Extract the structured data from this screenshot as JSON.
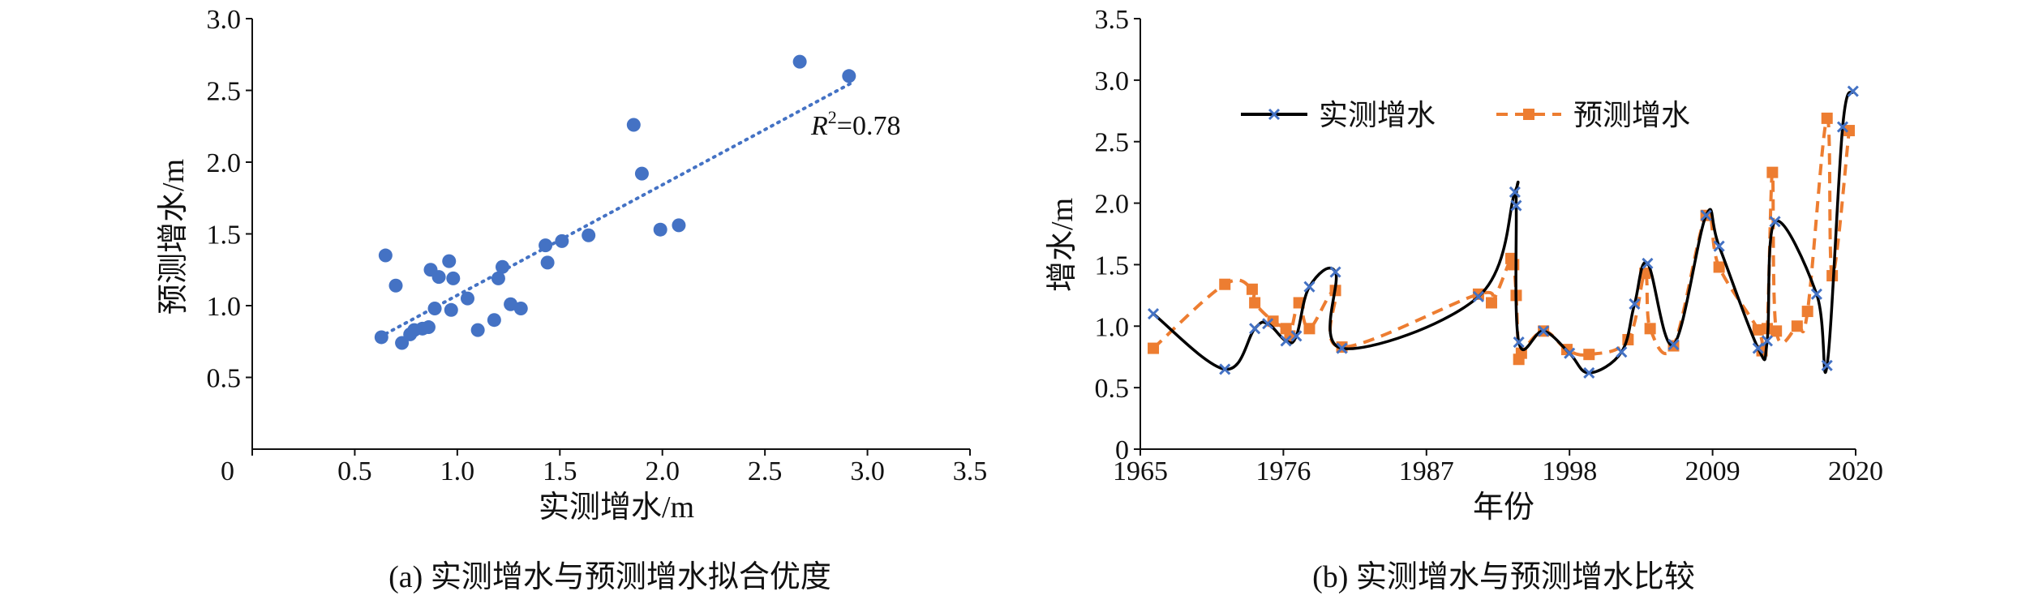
{
  "chart_data": [
    {
      "type": "scatter",
      "panel": "a",
      "caption": "(a) 实测增水与预测增水拟合优度",
      "xlabel": "实测增水/m",
      "ylabel": "预测增水/m",
      "xlim": [
        0,
        3.5
      ],
      "ylim": [
        0,
        3.0
      ],
      "x_ticks": [
        "0",
        "0.5",
        "1.0",
        "1.5",
        "2.0",
        "2.5",
        "3.0",
        "3.5"
      ],
      "y_ticks": [
        "0.5",
        "1.0",
        "1.5",
        "2.0",
        "2.5",
        "3.0"
      ],
      "marker_color": "#4472c4",
      "trendline_color": "#4472c4",
      "annotation": {
        "r": "R",
        "sup": "2",
        "rest": "=0.78"
      },
      "trendline": {
        "x": [
          0.62,
          2.92
        ],
        "y": [
          0.78,
          2.55
        ]
      },
      "points": [
        {
          "x": 0.63,
          "y": 0.78
        },
        {
          "x": 0.65,
          "y": 1.35
        },
        {
          "x": 0.7,
          "y": 1.14
        },
        {
          "x": 0.73,
          "y": 0.74
        },
        {
          "x": 0.77,
          "y": 0.8
        },
        {
          "x": 0.79,
          "y": 0.83
        },
        {
          "x": 0.83,
          "y": 0.84
        },
        {
          "x": 0.86,
          "y": 0.85
        },
        {
          "x": 0.87,
          "y": 1.25
        },
        {
          "x": 0.89,
          "y": 0.98
        },
        {
          "x": 0.91,
          "y": 1.2
        },
        {
          "x": 0.96,
          "y": 1.31
        },
        {
          "x": 0.97,
          "y": 0.97
        },
        {
          "x": 0.98,
          "y": 1.19
        },
        {
          "x": 1.05,
          "y": 1.05
        },
        {
          "x": 1.1,
          "y": 0.83
        },
        {
          "x": 1.18,
          "y": 0.9
        },
        {
          "x": 1.2,
          "y": 1.19
        },
        {
          "x": 1.22,
          "y": 1.27
        },
        {
          "x": 1.26,
          "y": 1.01
        },
        {
          "x": 1.31,
          "y": 0.98
        },
        {
          "x": 1.43,
          "y": 1.42
        },
        {
          "x": 1.44,
          "y": 1.3
        },
        {
          "x": 1.51,
          "y": 1.45
        },
        {
          "x": 1.64,
          "y": 1.49
        },
        {
          "x": 1.86,
          "y": 2.26
        },
        {
          "x": 1.9,
          "y": 1.92
        },
        {
          "x": 1.99,
          "y": 1.53
        },
        {
          "x": 2.08,
          "y": 1.56
        },
        {
          "x": 2.67,
          "y": 2.7
        },
        {
          "x": 2.91,
          "y": 2.6
        }
      ]
    },
    {
      "type": "line",
      "panel": "b",
      "caption": "(b) 实测增水与预测增水比较",
      "xlabel": "年份",
      "ylabel": "增水/m",
      "xlim": [
        1965,
        2020
      ],
      "ylim": [
        0,
        3.5
      ],
      "x_ticks": [
        "1965",
        "1976",
        "1987",
        "1998",
        "2009",
        "2020"
      ],
      "y_ticks": [
        "0",
        "0.5",
        "1.0",
        "1.5",
        "2.0",
        "2.5",
        "3.0",
        "3.5"
      ],
      "legend_placement": "top",
      "series": [
        {
          "name": "实测增水",
          "color": "#000000",
          "marker": "x",
          "marker_color": "#4472c4",
          "x": [
            1966,
            1971.5,
            1973.8,
            1974.8,
            1976.2,
            1977,
            1978,
            1980,
            1980.5,
            1991,
            1993.8,
            1993.9,
            1994.1,
            1996,
            1998,
            1999.5,
            2002,
            2003,
            2004,
            2006,
            2008.5,
            2009.5,
            2012.5,
            2013.2,
            2013.8,
            2017,
            2017.8,
            2019,
            2019.8
          ],
          "y": [
            1.1,
            0.65,
            0.98,
            1.02,
            0.88,
            0.92,
            1.32,
            1.44,
            0.82,
            1.24,
            2.09,
            1.98,
            0.87,
            0.96,
            0.78,
            0.62,
            0.79,
            1.18,
            1.51,
            0.85,
            1.9,
            1.65,
            0.82,
            0.88,
            1.85,
            1.26,
            0.68,
            2.62,
            2.91
          ]
        },
        {
          "name": "预测增水",
          "color": "#ed7d31",
          "marker": "square",
          "x": [
            1966,
            1971.5,
            1973.6,
            1973.8,
            1975.2,
            1976.2,
            1976.5,
            1977.2,
            1978,
            1980,
            1980.5,
            1991,
            1992,
            1993.5,
            1993.7,
            1993.9,
            1994.1,
            1994.3,
            1996,
            1997.8,
            1999.5,
            2002.5,
            2003.8,
            2004.2,
            2006,
            2008.5,
            2009.5,
            2012.5,
            2012.8,
            2013.2,
            2013.6,
            2013.9,
            2015.5,
            2016.3,
            2017.8,
            2018.2,
            2019.5
          ],
          "y": [
            0.82,
            1.34,
            1.3,
            1.19,
            1.04,
            0.98,
            0.92,
            1.19,
            0.98,
            1.29,
            0.83,
            1.26,
            1.19,
            1.55,
            1.5,
            1.25,
            0.73,
            0.78,
            0.96,
            0.81,
            0.77,
            0.89,
            1.43,
            0.98,
            0.84,
            1.9,
            1.48,
            0.97,
            0.8,
            0.98,
            2.25,
            0.96,
            1.0,
            1.12,
            2.69,
            1.41,
            2.59
          ]
        }
      ]
    }
  ]
}
